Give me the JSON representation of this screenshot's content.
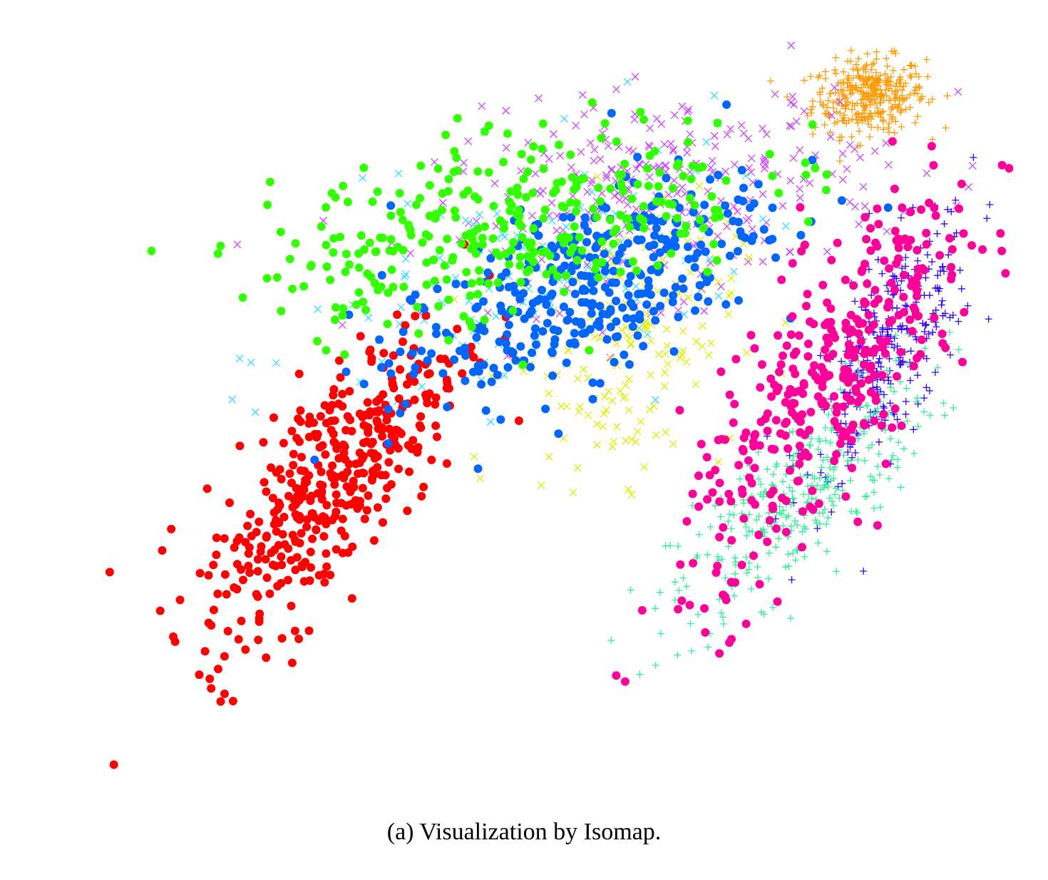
{
  "caption": "(a)  Visualization by Isomap.",
  "chart_data": {
    "type": "scatter",
    "title": "",
    "xlabel": "",
    "ylabel": "",
    "axes_visible": false,
    "grid": false,
    "xlim": [
      0,
      100
    ],
    "ylim": [
      0,
      100
    ],
    "series": [
      {
        "color": "#ff0000",
        "marker": "dot",
        "cx": 27,
        "cy": 40,
        "sx": 7,
        "sy": 11,
        "rho": 0.75,
        "n": 420
      },
      {
        "color": "#0066ff",
        "marker": "dot",
        "cx": 53,
        "cy": 65,
        "sx": 10,
        "sy": 8,
        "rho": 0.65,
        "n": 380
      },
      {
        "color": "#33ff00",
        "marker": "dot",
        "cx": 46,
        "cy": 74,
        "sx": 13,
        "sy": 7,
        "rho": 0.45,
        "n": 330
      },
      {
        "color": "#ff0099",
        "marker": "dot",
        "cx": 80,
        "cy": 53,
        "sx": 8,
        "sy": 14,
        "rho": 0.8,
        "n": 380
      },
      {
        "color": "#ff9900",
        "marker": "plus",
        "cx": 84,
        "cy": 91,
        "sx": 3,
        "sy": 2.5,
        "rho": 0.1,
        "n": 330
      },
      {
        "color": "#3300ff",
        "marker": "plus",
        "cx": 86,
        "cy": 57,
        "sx": 4.5,
        "sy": 9,
        "rho": 0.7,
        "n": 300
      },
      {
        "color": "#33ee99",
        "marker": "plus",
        "cx": 77,
        "cy": 38,
        "sx": 7,
        "sy": 9,
        "rho": 0.8,
        "n": 320
      },
      {
        "color": "#cc44ff",
        "marker": "cross",
        "cx": 62,
        "cy": 78,
        "sx": 12,
        "sy": 7,
        "rho": 0.3,
        "n": 300
      },
      {
        "color": "#33ddff",
        "marker": "cross",
        "cx": 48,
        "cy": 66,
        "sx": 12,
        "sy": 9,
        "rho": 0.45,
        "n": 130
      },
      {
        "color": "#ddee00",
        "marker": "cross",
        "cx": 58,
        "cy": 58,
        "sx": 6,
        "sy": 9,
        "rho": 0.2,
        "n": 160
      }
    ]
  }
}
